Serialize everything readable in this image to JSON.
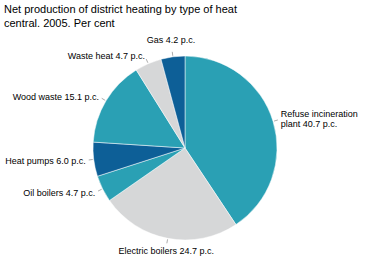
{
  "chart_data": {
    "type": "pie",
    "title": "Net production of district heating by type of heat central. 2005. Per cent",
    "categories": [
      "Refuse incineration plant",
      "Electric boilers",
      "Oil boilers",
      "Heat pumps",
      "Wood waste",
      "Waste heat",
      "Gas"
    ],
    "values": [
      40.7,
      24.7,
      4.7,
      6.0,
      15.1,
      4.7,
      4.2
    ],
    "value_labels": [
      "40.7 p.c.",
      "24.7 p.c.",
      "4.7 p.c.",
      "6.0 p.c.",
      "15.1 p.c.",
      "4.7 p.c.",
      "4.2 p.c."
    ],
    "data_labels": true,
    "colors": [
      "#2aa0b4",
      "#d6d7d8",
      "#2aa0b4",
      "#0d5f97",
      "#2aa0b4",
      "#d6d7d8",
      "#0d5f97"
    ]
  }
}
